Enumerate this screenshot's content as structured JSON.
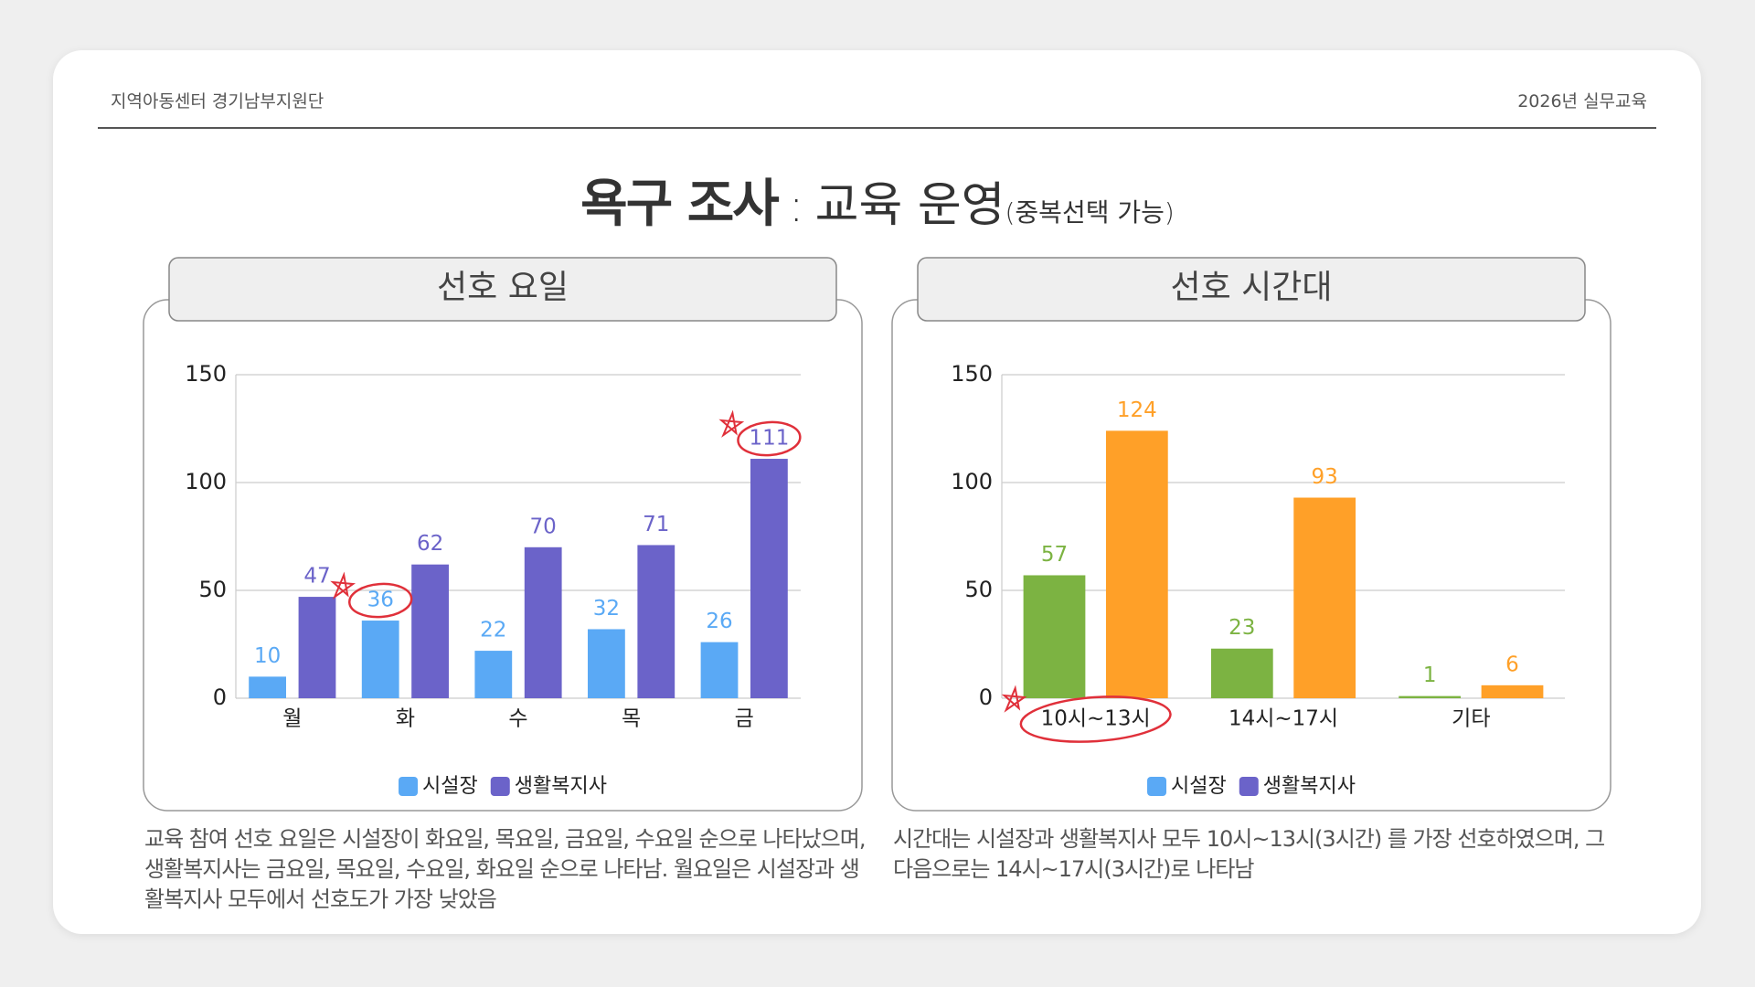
{
  "header": {
    "org": "지역아동센터 경기남부지원단",
    "event": "2026년 실무교육"
  },
  "title": {
    "bold": "욕구 조사",
    "separator": ":",
    "main": "교육 운영",
    "note": "(중복선택 가능)"
  },
  "chart_data": [
    {
      "type": "bar",
      "title": "선호 요일",
      "categories": [
        "월",
        "화",
        "수",
        "목",
        "금"
      ],
      "series": [
        {
          "name": "시설장",
          "color": "#5aa9f5",
          "values": [
            10,
            36,
            22,
            32,
            26
          ]
        },
        {
          "name": "생활복지사",
          "color": "#6b63c9",
          "values": [
            47,
            62,
            70,
            71,
            111
          ]
        }
      ],
      "legend_colors": [
        "#5aa9f5",
        "#6b63c9"
      ],
      "ylim": [
        0,
        150
      ],
      "yticks": [
        0,
        50,
        100,
        150
      ],
      "grid": true,
      "caption": "교육 참여 선호 요일은 시설장이 화요일, 목요일, 금요일, 수요일 순으로 나타났으며, 생활복지사는 금요일, 목요일, 수요일, 화요일 순으로 나타남. 월요일은 시설장과 생활복지사 모두에서 선호도가 가장 낮았음"
    },
    {
      "type": "bar",
      "title": "선호 시간대",
      "categories": [
        "10시~13시",
        "14시~17시",
        "기타"
      ],
      "series": [
        {
          "name": "시설장",
          "color": "#7cb342",
          "values": [
            57,
            23,
            1
          ]
        },
        {
          "name": "생활복지사",
          "color": "#ffa028",
          "values": [
            124,
            93,
            6
          ]
        }
      ],
      "legend_colors": [
        "#5aa9f5",
        "#6b63c9"
      ],
      "ylim": [
        0,
        150
      ],
      "yticks": [
        0,
        50,
        100,
        150
      ],
      "grid": true,
      "caption": "시간대는 시설장과 생활복지사 모두 10시~13시(3시간) 를 가장 선호하였으며, 그 다음으로는 14시~17시(3시간)로 나타남"
    }
  ]
}
